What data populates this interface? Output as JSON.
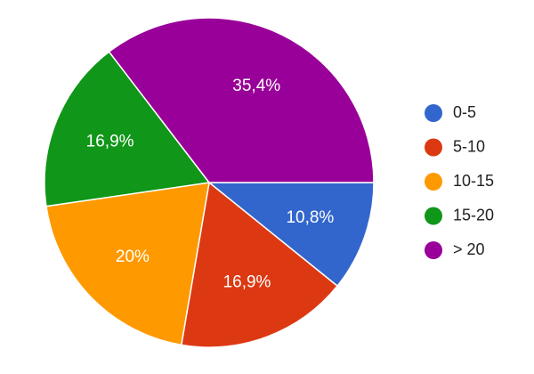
{
  "chart_data": {
    "type": "pie",
    "categories": [
      "0-5",
      "5-10",
      "10-15",
      "15-20",
      "> 20"
    ],
    "values": [
      10.8,
      16.9,
      20,
      16.9,
      35.4
    ],
    "value_labels": [
      "10,8%",
      "16,9%",
      "20%",
      "16,9%",
      "35,4%"
    ],
    "colors": [
      "#3366cc",
      "#dc3912",
      "#ff9900",
      "#109618",
      "#990099"
    ],
    "legend": "right"
  }
}
